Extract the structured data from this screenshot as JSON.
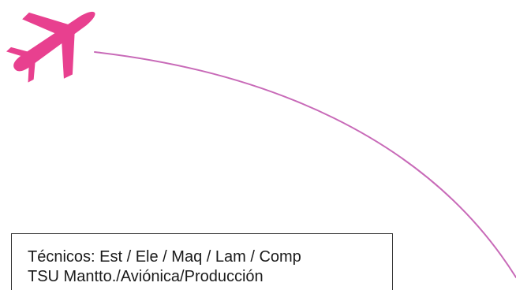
{
  "colors": {
    "plane": "#e8408f",
    "flight_path": "#c86ab8",
    "text": "#1a1a1a",
    "border": "#333333",
    "background": "#ffffff"
  },
  "icons": {
    "plane": "airplane-icon"
  },
  "text_box": {
    "line1": "Técnicos: Est / Ele / Maq / Lam / Comp",
    "line2": "TSU Mantto./Aviónica/Producción"
  }
}
